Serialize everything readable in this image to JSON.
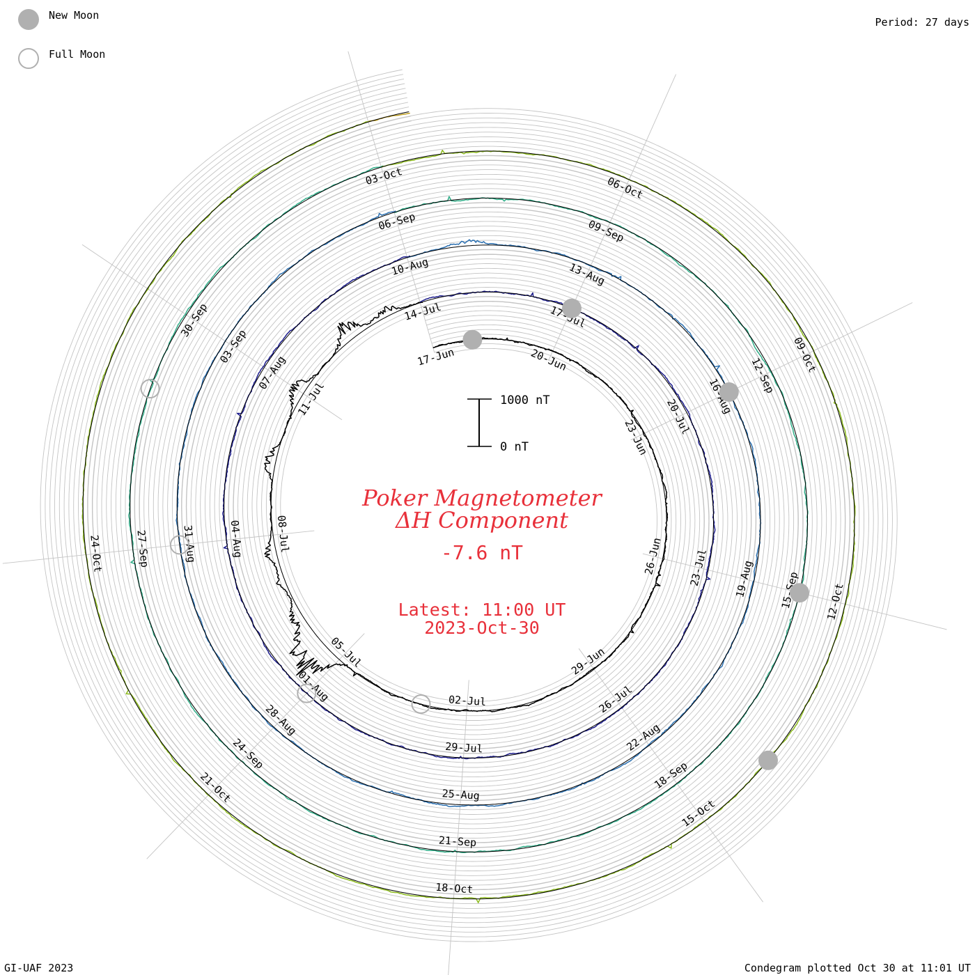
{
  "legend": {
    "new_moon": "New Moon",
    "full_moon": "Full Moon"
  },
  "period_label": "Period: 27 days",
  "footer_left": "GI-UAF 2023",
  "footer_right": "Condegram plotted Oct 30 at 11:01 UT",
  "title": {
    "line1": "Poker Magnetometer",
    "line2": "ΔH Component",
    "value": "-7.6 nT",
    "latest_line1": "Latest: 11:00 UT",
    "latest_line2": "2023-Oct-30"
  },
  "scale_bar": {
    "top_label": "1000 nT",
    "bottom_label": "0 nT"
  },
  "colors": {
    "moon_fill": "#b0b0b0",
    "moon_stroke": "#b0b0b0",
    "text_red": "#e8303a",
    "grid": "#c4c4c4"
  },
  "chart_data": {
    "type": "line",
    "subtype": "condegram spiral",
    "period_days": 27,
    "start_date": "2023-Jun-17",
    "end_date": "2023-Oct-30",
    "scale_nT": 1000,
    "latest_value_nT": -7.6,
    "date_labels": [
      "17-Jun",
      "20-Jun",
      "23-Jun",
      "26-Jun",
      "29-Jun",
      "02-Jul",
      "05-Jul",
      "08-Jul",
      "11-Jul",
      "14-Jul",
      "17-Jul",
      "20-Jul",
      "23-Jul",
      "26-Jul",
      "29-Jul",
      "01-Aug",
      "04-Aug",
      "07-Aug",
      "10-Aug",
      "13-Aug",
      "16-Aug",
      "19-Aug",
      "22-Aug",
      "25-Aug",
      "28-Aug",
      "31-Aug",
      "03-Sep",
      "06-Sep",
      "09-Sep",
      "12-Sep",
      "15-Sep",
      "18-Sep",
      "21-Sep",
      "24-Sep",
      "27-Sep",
      "30-Sep",
      "03-Oct",
      "06-Oct",
      "09-Oct",
      "12-Oct",
      "15-Oct",
      "18-Oct",
      "21-Oct",
      "24-Oct"
    ],
    "new_moons": [
      "2023-Jun-18",
      "2023-Jul-17",
      "2023-Aug-16",
      "2023-Sep-15",
      "2023-Oct-14"
    ],
    "full_moons": [
      "2023-Jul-03",
      "2023-Aug-01",
      "2023-Aug-31",
      "2023-Sep-29"
    ],
    "series": [
      {
        "color": "#000000",
        "disturbances": [
          [
            18.3,
            550
          ],
          [
            18.7,
            450
          ],
          [
            19.2,
            200
          ],
          [
            20.0,
            120
          ],
          [
            20.6,
            180
          ],
          [
            22.5,
            200
          ],
          [
            24.0,
            220
          ],
          [
            25.5,
            300
          ],
          [
            26.3,
            150
          ],
          [
            28.0,
            200
          ],
          [
            29.5,
            140
          ],
          [
            30.2,
            120
          ]
        ]
      },
      {
        "color": "#1c1c8c",
        "disturbances": [
          [
            3.2,
            150
          ],
          [
            6.0,
            220
          ],
          [
            7.7,
            350
          ],
          [
            8.5,
            150
          ],
          [
            9.5,
            150
          ],
          [
            12.2,
            300
          ],
          [
            13.5,
            250
          ],
          [
            15.0,
            250
          ],
          [
            17.6,
            200
          ],
          [
            18.3,
            180
          ],
          [
            21.2,
            150
          ],
          [
            23.0,
            120
          ]
        ]
      },
      {
        "color": "#2a6fb0",
        "disturbances": [
          [
            27.3,
            200
          ],
          [
            30.0,
            300
          ],
          [
            31.4,
            250
          ],
          [
            32.8,
            200
          ],
          [
            35.0,
            450
          ],
          [
            37.2,
            220
          ],
          [
            38.2,
            180
          ],
          [
            39.5,
            120
          ],
          [
            41.0,
            80
          ],
          [
            44.0,
            120
          ],
          [
            47.5,
            100
          ],
          [
            52.0,
            120
          ],
          [
            55.0,
            80
          ]
        ]
      },
      {
        "color": "#2fae88",
        "disturbances": [
          [
            55.6,
            120
          ],
          [
            57.0,
            200
          ],
          [
            59.0,
            150
          ],
          [
            60.8,
            250
          ],
          [
            62.5,
            350
          ],
          [
            64.5,
            250
          ],
          [
            66.2,
            200
          ],
          [
            70.0,
            120
          ],
          [
            74.0,
            180
          ],
          [
            76.0,
            120
          ],
          [
            78.0,
            150
          ],
          [
            80.0,
            100
          ]
        ]
      },
      {
        "color": "#8cba1c",
        "disturbances": [
          [
            83.5,
            400
          ],
          [
            84.0,
            300
          ],
          [
            86.2,
            600
          ],
          [
            87.0,
            350
          ],
          [
            89.2,
            550
          ],
          [
            90.2,
            400
          ],
          [
            92.5,
            220
          ],
          [
            95.0,
            200
          ],
          [
            98.0,
            300
          ],
          [
            100.5,
            200
          ],
          [
            103.0,
            250
          ],
          [
            105.0,
            150
          ]
        ]
      },
      {
        "color": "#c0a020",
        "disturbances": [
          [
            106.0,
            300
          ],
          [
            108.5,
            250
          ],
          [
            110.2,
            200
          ],
          [
            112.0,
            150
          ],
          [
            114.5,
            300
          ],
          [
            116.0,
            120
          ],
          [
            118.0,
            120
          ],
          [
            120.0,
            80
          ],
          [
            125.0,
            100
          ],
          [
            128.0,
            60
          ]
        ]
      },
      {
        "color": "#c83a14",
        "disturbances": [
          [
            121.0,
            200
          ],
          [
            122.2,
            150
          ],
          [
            124.0,
            200
          ],
          [
            126.1,
            300
          ],
          [
            128.8,
            180
          ],
          [
            130.2,
            420
          ],
          [
            132.0,
            300
          ],
          [
            133.5,
            250
          ],
          [
            134.3,
            200
          ]
        ]
      }
    ]
  }
}
